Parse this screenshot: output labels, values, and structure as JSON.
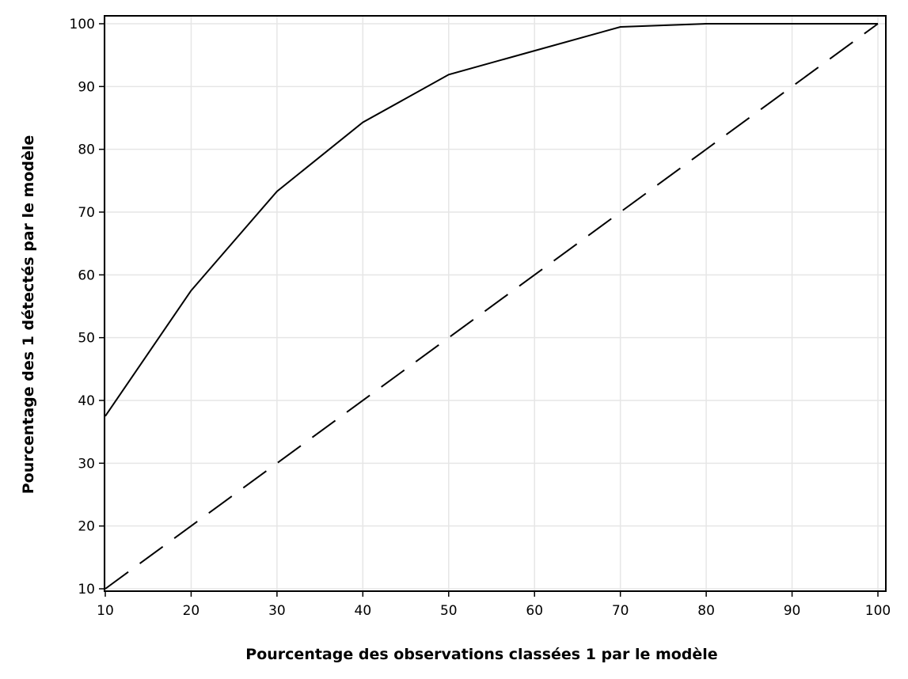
{
  "chart_data": {
    "type": "line",
    "xlabel": "Pourcentage des observations classées 1 par le modèle",
    "ylabel": "Pourcentage des 1 détectés par le modèle",
    "xlim": [
      10,
      100
    ],
    "ylim": [
      10,
      100
    ],
    "x_ticks": [
      "10",
      "20",
      "30",
      "40",
      "50",
      "60",
      "70",
      "80",
      "90",
      "100"
    ],
    "y_ticks": [
      "10",
      "20",
      "30",
      "40",
      "50",
      "60",
      "70",
      "80",
      "90",
      "100"
    ],
    "grid": true,
    "legend": "none",
    "series": [
      {
        "style": "solid",
        "color": "#000000",
        "x": [
          10,
          20,
          30,
          40,
          50,
          60,
          70,
          80,
          90,
          100
        ],
        "y": [
          37.5,
          57.5,
          73.3,
          84.3,
          91.9,
          95.7,
          99.5,
          100,
          100,
          100
        ]
      },
      {
        "style": "dashed",
        "color": "#000000",
        "x": [
          10,
          100
        ],
        "y": [
          10,
          100
        ]
      }
    ]
  }
}
